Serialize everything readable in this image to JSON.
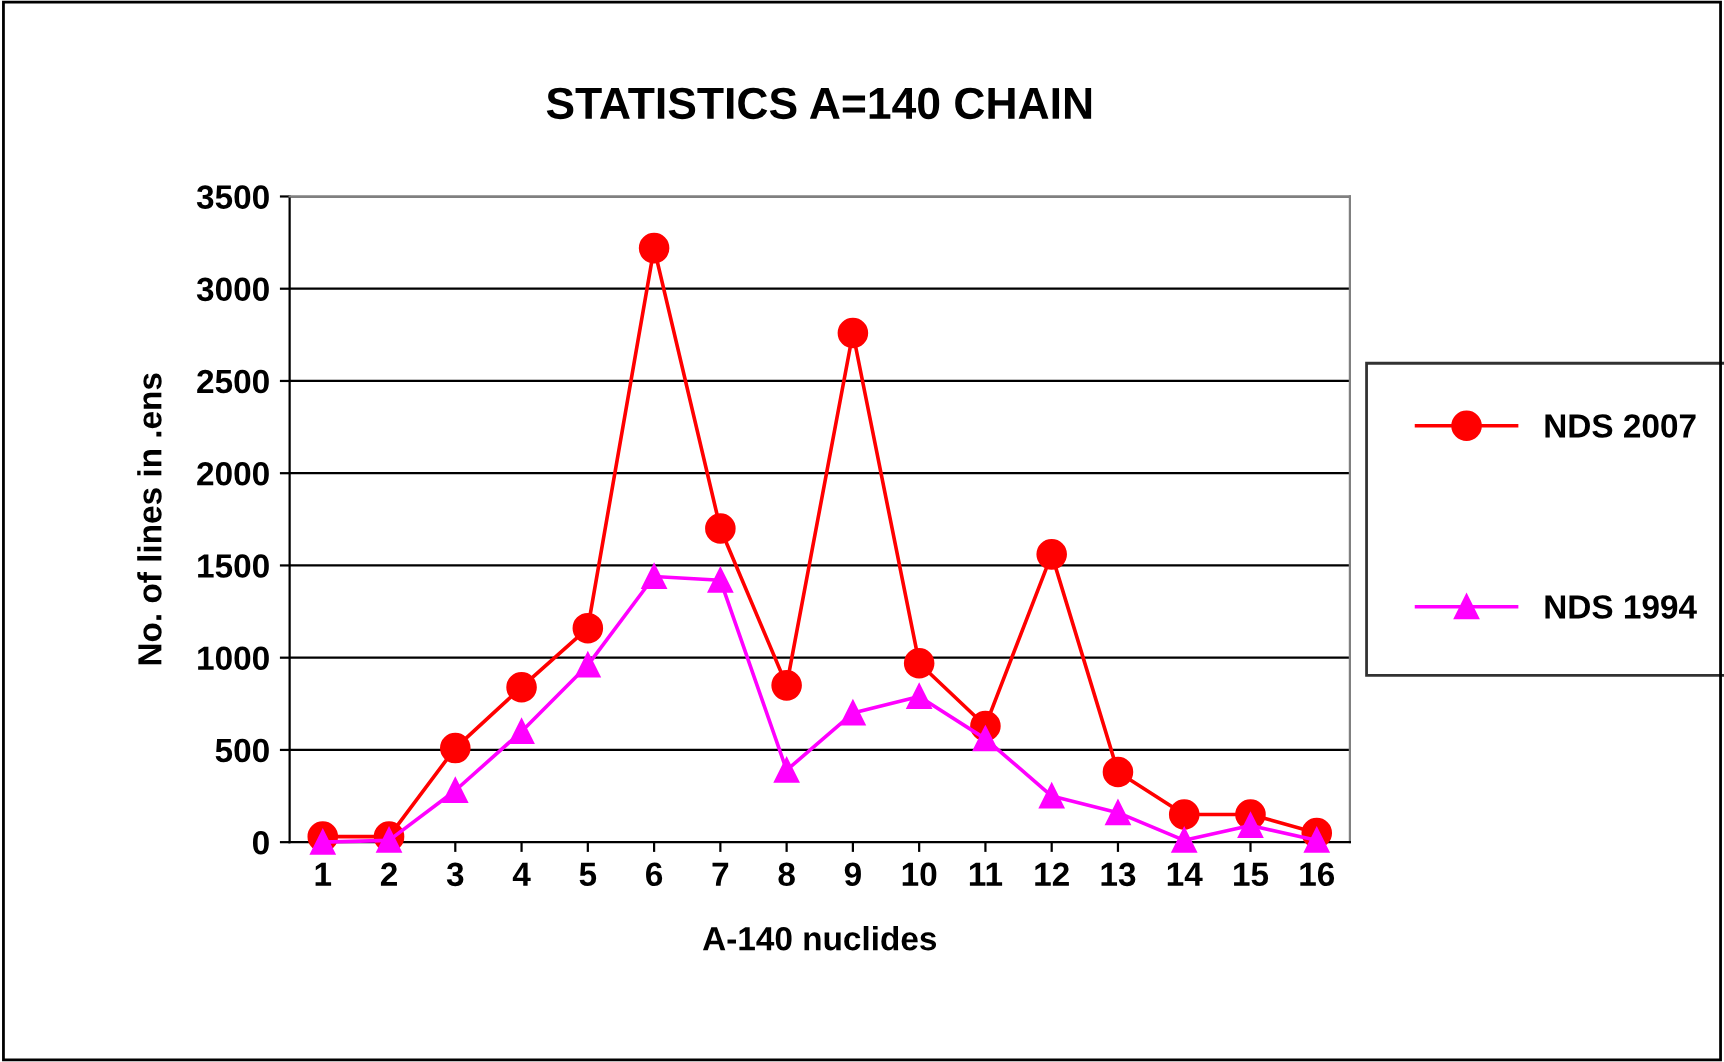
{
  "chart_data": {
    "type": "line",
    "title": "STATISTICS A=140 CHAIN",
    "xlabel": "A-140 nuclides",
    "ylabel": "No. of lines in .ens",
    "categories": [
      "1",
      "2",
      "3",
      "4",
      "5",
      "6",
      "7",
      "8",
      "9",
      "10",
      "11",
      "12",
      "13",
      "14",
      "15",
      "16"
    ],
    "series": [
      {
        "name": "NDS 2007",
        "color": "#ff0000",
        "marker": "circle",
        "values": [
          30,
          30,
          510,
          840,
          1160,
          3220,
          1700,
          850,
          2760,
          970,
          630,
          1560,
          380,
          150,
          150,
          50
        ]
      },
      {
        "name": "NDS 1994",
        "color": "#ff00ff",
        "marker": "triangle",
        "values": [
          0,
          10,
          280,
          600,
          960,
          1440,
          1420,
          390,
          700,
          790,
          560,
          250,
          160,
          10,
          90,
          10
        ]
      }
    ],
    "ylim": [
      0,
      3500
    ],
    "yticks": [
      0,
      500,
      1000,
      1500,
      2000,
      2500,
      3000,
      3500
    ],
    "grid": "y",
    "legend": "right",
    "line_style": "solid"
  }
}
